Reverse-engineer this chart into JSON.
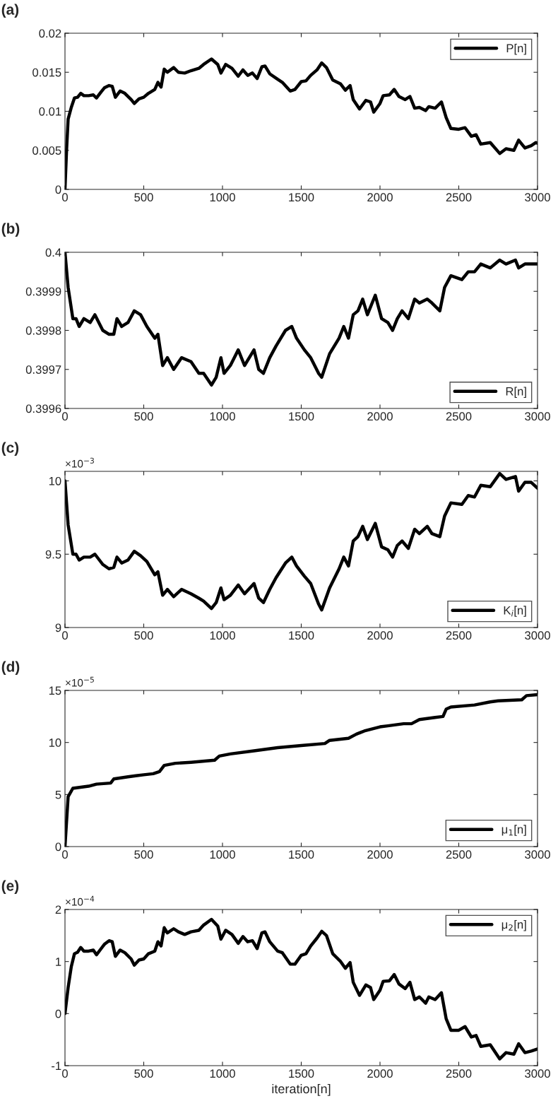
{
  "chart_data": [
    {
      "type": "line",
      "title": "(a)",
      "xlim": [
        0,
        3000
      ],
      "xticks": [
        0,
        500,
        1000,
        1500,
        2000,
        2500,
        3000
      ],
      "ylim": [
        0,
        0.02
      ],
      "yticks": [
        0,
        0.005,
        0.01,
        0.015,
        0.02
      ],
      "grid": false,
      "legend": "top right",
      "marker": "none",
      "line_style": "solid",
      "series": [
        {
          "name": "P[n]",
          "color": "#000000",
          "x": [
            0,
            10,
            20,
            40,
            60,
            80,
            100,
            120,
            150,
            180,
            200,
            230,
            250,
            280,
            300,
            320,
            350,
            380,
            420,
            440,
            470,
            500,
            530,
            570,
            590,
            610,
            630,
            650,
            690,
            720,
            760,
            800,
            850,
            880,
            930,
            970,
            990,
            1020,
            1060,
            1100,
            1130,
            1160,
            1190,
            1220,
            1250,
            1270,
            1300,
            1350,
            1380,
            1430,
            1460,
            1500,
            1530,
            1560,
            1600,
            1630,
            1660,
            1700,
            1750,
            1780,
            1810,
            1830,
            1870,
            1910,
            1940,
            1960,
            2000,
            2020,
            2060,
            2090,
            2120,
            2160,
            2190,
            2220,
            2250,
            2290,
            2310,
            2350,
            2390,
            2420,
            2450,
            2500,
            2540,
            2580,
            2610,
            2640,
            2700,
            2760,
            2800,
            2850,
            2880,
            2920,
            2960,
            2990,
            3000
          ],
          "values": [
            0,
            0.005,
            0.009,
            0.0105,
            0.0117,
            0.0118,
            0.0123,
            0.012,
            0.012,
            0.0121,
            0.0117,
            0.0125,
            0.013,
            0.0133,
            0.0132,
            0.0118,
            0.0126,
            0.0123,
            0.0115,
            0.011,
            0.0116,
            0.0118,
            0.0123,
            0.0128,
            0.0137,
            0.0131,
            0.0154,
            0.015,
            0.0156,
            0.015,
            0.0149,
            0.0152,
            0.0155,
            0.016,
            0.0167,
            0.016,
            0.0149,
            0.016,
            0.0155,
            0.0145,
            0.0153,
            0.0146,
            0.0149,
            0.0142,
            0.0157,
            0.0158,
            0.0148,
            0.0141,
            0.0137,
            0.0126,
            0.0128,
            0.0138,
            0.0139,
            0.0146,
            0.0153,
            0.0162,
            0.0156,
            0.014,
            0.0135,
            0.0127,
            0.0133,
            0.0115,
            0.0103,
            0.0114,
            0.0112,
            0.0099,
            0.011,
            0.012,
            0.0121,
            0.0128,
            0.0119,
            0.0115,
            0.0119,
            0.0104,
            0.0105,
            0.0101,
            0.0106,
            0.0104,
            0.0112,
            0.0092,
            0.0078,
            0.0077,
            0.0079,
            0.0068,
            0.007,
            0.0058,
            0.006,
            0.0046,
            0.0052,
            0.005,
            0.0063,
            0.0053,
            0.0056,
            0.006,
            0.0059
          ]
        }
      ]
    },
    {
      "type": "line",
      "title": "(b)",
      "xlim": [
        0,
        3000
      ],
      "xticks": [
        0,
        500,
        1000,
        1500,
        2000,
        2500,
        3000
      ],
      "ylim": [
        0.3996,
        0.4
      ],
      "yticks": [
        0.3996,
        0.3997,
        0.3998,
        0.3999,
        0.4
      ],
      "grid": false,
      "legend": "bottom right",
      "marker": "none",
      "line_style": "solid",
      "series": [
        {
          "name": "R[n]",
          "color": "#000000",
          "x": [
            0,
            20,
            50,
            70,
            90,
            120,
            160,
            190,
            240,
            280,
            310,
            330,
            360,
            400,
            440,
            480,
            520,
            570,
            590,
            620,
            650,
            690,
            740,
            800,
            850,
            880,
            930,
            960,
            990,
            1010,
            1050,
            1100,
            1140,
            1200,
            1230,
            1260,
            1300,
            1340,
            1400,
            1440,
            1470,
            1520,
            1560,
            1610,
            1630,
            1680,
            1740,
            1770,
            1800,
            1830,
            1860,
            1890,
            1920,
            1970,
            2010,
            2050,
            2080,
            2110,
            2140,
            2180,
            2220,
            2250,
            2300,
            2330,
            2380,
            2410,
            2450,
            2520,
            2560,
            2600,
            2640,
            2700,
            2760,
            2800,
            2860,
            2880,
            2920,
            2960,
            3000
          ],
          "values": [
            0.4,
            0.39991,
            0.39983,
            0.39983,
            0.39981,
            0.39983,
            0.39982,
            0.39984,
            0.3998,
            0.39979,
            0.39979,
            0.39983,
            0.39981,
            0.39982,
            0.39985,
            0.39984,
            0.39981,
            0.39978,
            0.39979,
            0.39971,
            0.39973,
            0.3997,
            0.39973,
            0.39972,
            0.39969,
            0.39969,
            0.39966,
            0.39968,
            0.39973,
            0.39969,
            0.39971,
            0.39975,
            0.39971,
            0.39975,
            0.3997,
            0.39969,
            0.39973,
            0.39976,
            0.3998,
            0.39981,
            0.39978,
            0.39975,
            0.39973,
            0.39969,
            0.39968,
            0.39974,
            0.39978,
            0.39981,
            0.39978,
            0.39984,
            0.39985,
            0.39988,
            0.39984,
            0.39989,
            0.39983,
            0.39982,
            0.3998,
            0.39983,
            0.39985,
            0.39983,
            0.39988,
            0.39987,
            0.39988,
            0.39987,
            0.39985,
            0.39991,
            0.39994,
            0.39993,
            0.39995,
            0.39995,
            0.39997,
            0.39996,
            0.39998,
            0.39997,
            0.39998,
            0.39996,
            0.39997,
            0.39997,
            0.39997
          ]
        }
      ]
    },
    {
      "type": "line",
      "title": "(c)",
      "annotations": [
        "×10$^{−3}$"
      ],
      "xlim": [
        0,
        3000
      ],
      "xticks": [
        0,
        500,
        1000,
        1500,
        2000,
        2500,
        3000
      ],
      "ylim": [
        9,
        10.065
      ],
      "yticks": [
        9,
        9.5,
        10
      ],
      "grid": false,
      "legend": "bottom right",
      "marker": "none",
      "line_style": "solid",
      "series": [
        {
          "name": "K$_{i}$[n]",
          "color": "#000000",
          "x": [
            0,
            20,
            50,
            70,
            90,
            120,
            160,
            190,
            240,
            280,
            310,
            330,
            360,
            400,
            440,
            480,
            520,
            570,
            590,
            620,
            650,
            690,
            740,
            800,
            850,
            880,
            930,
            960,
            990,
            1010,
            1050,
            1100,
            1140,
            1200,
            1230,
            1260,
            1300,
            1340,
            1400,
            1440,
            1470,
            1520,
            1560,
            1610,
            1630,
            1680,
            1740,
            1770,
            1800,
            1830,
            1860,
            1890,
            1920,
            1970,
            2010,
            2050,
            2080,
            2110,
            2140,
            2180,
            2220,
            2250,
            2300,
            2330,
            2380,
            2410,
            2450,
            2520,
            2560,
            2600,
            2640,
            2700,
            2760,
            2800,
            2860,
            2880,
            2920,
            2960,
            3000
          ],
          "values": [
            10,
            9.7,
            9.5,
            9.5,
            9.46,
            9.48,
            9.48,
            9.5,
            9.43,
            9.4,
            9.41,
            9.48,
            9.44,
            9.46,
            9.52,
            9.49,
            9.45,
            9.36,
            9.38,
            9.22,
            9.26,
            9.21,
            9.26,
            9.23,
            9.2,
            9.18,
            9.13,
            9.17,
            9.27,
            9.19,
            9.22,
            9.29,
            9.23,
            9.3,
            9.2,
            9.17,
            9.26,
            9.34,
            9.44,
            9.48,
            9.42,
            9.35,
            9.3,
            9.16,
            9.12,
            9.27,
            9.4,
            9.48,
            9.42,
            9.59,
            9.62,
            9.69,
            9.6,
            9.71,
            9.55,
            9.53,
            9.48,
            9.56,
            9.59,
            9.54,
            9.67,
            9.64,
            9.69,
            9.64,
            9.62,
            9.76,
            9.85,
            9.84,
            9.9,
            9.89,
            9.97,
            9.96,
            10.05,
            10.01,
            10.03,
            9.93,
            9.99,
            9.99,
            9.95
          ]
        }
      ]
    },
    {
      "type": "line",
      "title": "(d)",
      "annotations": [
        "×10$^{−5}$"
      ],
      "xlim": [
        0,
        3000
      ],
      "xticks": [
        0,
        500,
        1000,
        1500,
        2000,
        2500,
        3000
      ],
      "ylim": [
        0,
        15
      ],
      "yticks": [
        0,
        5,
        10,
        15
      ],
      "grid": false,
      "legend": "bottom right",
      "marker": "none",
      "line_style": "solid",
      "series": [
        {
          "name": "μ$_{1}$[n]",
          "color": "#000000",
          "x": [
            0,
            20,
            50,
            100,
            150,
            200,
            290,
            310,
            400,
            450,
            500,
            560,
            600,
            630,
            700,
            800,
            950,
            980,
            1050,
            1200,
            1350,
            1500,
            1650,
            1680,
            1800,
            1850,
            1900,
            2000,
            2050,
            2150,
            2200,
            2250,
            2350,
            2400,
            2420,
            2450,
            2600,
            2700,
            2750,
            2900,
            2930,
            3000
          ],
          "values": [
            0,
            4.8,
            5.6,
            5.7,
            5.8,
            6.0,
            6.1,
            6.5,
            6.7,
            6.8,
            6.9,
            7.0,
            7.2,
            7.8,
            8.0,
            8.1,
            8.3,
            8.7,
            8.9,
            9.2,
            9.5,
            9.7,
            9.9,
            10.2,
            10.4,
            10.8,
            11.1,
            11.5,
            11.6,
            11.8,
            11.8,
            12.2,
            12.4,
            12.5,
            13.2,
            13.4,
            13.6,
            13.9,
            14.0,
            14.1,
            14.5,
            14.6
          ]
        }
      ]
    },
    {
      "type": "line",
      "title": "(e)",
      "annotations": [
        "×10$^{−4}$"
      ],
      "xlabel": "iteration[n]",
      "xlim": [
        0,
        3000
      ],
      "xticks": [
        0,
        500,
        1000,
        1500,
        2000,
        2500,
        3000
      ],
      "ylim": [
        -1,
        2
      ],
      "yticks": [
        -1,
        0,
        1,
        2
      ],
      "grid": false,
      "legend": "top right",
      "marker": "none",
      "line_style": "solid",
      "series": [
        {
          "name": "μ$_{2}$[n]",
          "color": "#000000",
          "x": [
            0,
            20,
            40,
            60,
            80,
            100,
            120,
            150,
            180,
            200,
            230,
            250,
            280,
            300,
            320,
            350,
            380,
            420,
            440,
            470,
            500,
            530,
            570,
            590,
            610,
            630,
            650,
            690,
            720,
            760,
            800,
            850,
            880,
            930,
            970,
            990,
            1020,
            1060,
            1100,
            1130,
            1160,
            1190,
            1220,
            1250,
            1270,
            1300,
            1350,
            1380,
            1430,
            1460,
            1500,
            1530,
            1560,
            1600,
            1630,
            1660,
            1700,
            1750,
            1780,
            1810,
            1830,
            1870,
            1910,
            1940,
            1960,
            2000,
            2020,
            2060,
            2090,
            2120,
            2160,
            2190,
            2220,
            2250,
            2290,
            2310,
            2350,
            2390,
            2420,
            2450,
            2500,
            2540,
            2580,
            2610,
            2640,
            2700,
            2760,
            2800,
            2850,
            2880,
            2920,
            2960,
            3000
          ],
          "values": [
            0,
            0.5,
            0.9,
            1.15,
            1.18,
            1.27,
            1.2,
            1.2,
            1.22,
            1.13,
            1.25,
            1.33,
            1.4,
            1.38,
            1.1,
            1.22,
            1.17,
            1.05,
            0.93,
            1.03,
            1.05,
            1.15,
            1.2,
            1.38,
            1.3,
            1.65,
            1.55,
            1.63,
            1.57,
            1.52,
            1.57,
            1.6,
            1.7,
            1.81,
            1.68,
            1.43,
            1.6,
            1.52,
            1.35,
            1.48,
            1.38,
            1.4,
            1.25,
            1.55,
            1.57,
            1.38,
            1.2,
            1.17,
            0.95,
            0.95,
            1.12,
            1.15,
            1.3,
            1.45,
            1.58,
            1.5,
            1.15,
            1.0,
            0.87,
            0.98,
            0.6,
            0.35,
            0.55,
            0.5,
            0.27,
            0.45,
            0.62,
            0.63,
            0.75,
            0.57,
            0.48,
            0.6,
            0.27,
            0.32,
            0.2,
            0.32,
            0.27,
            0.4,
            -0.1,
            -0.32,
            -0.32,
            -0.25,
            -0.45,
            -0.42,
            -0.63,
            -0.6,
            -0.87,
            -0.75,
            -0.78,
            -0.58,
            -0.75,
            -0.72,
            -0.68
          ]
        }
      ]
    }
  ]
}
